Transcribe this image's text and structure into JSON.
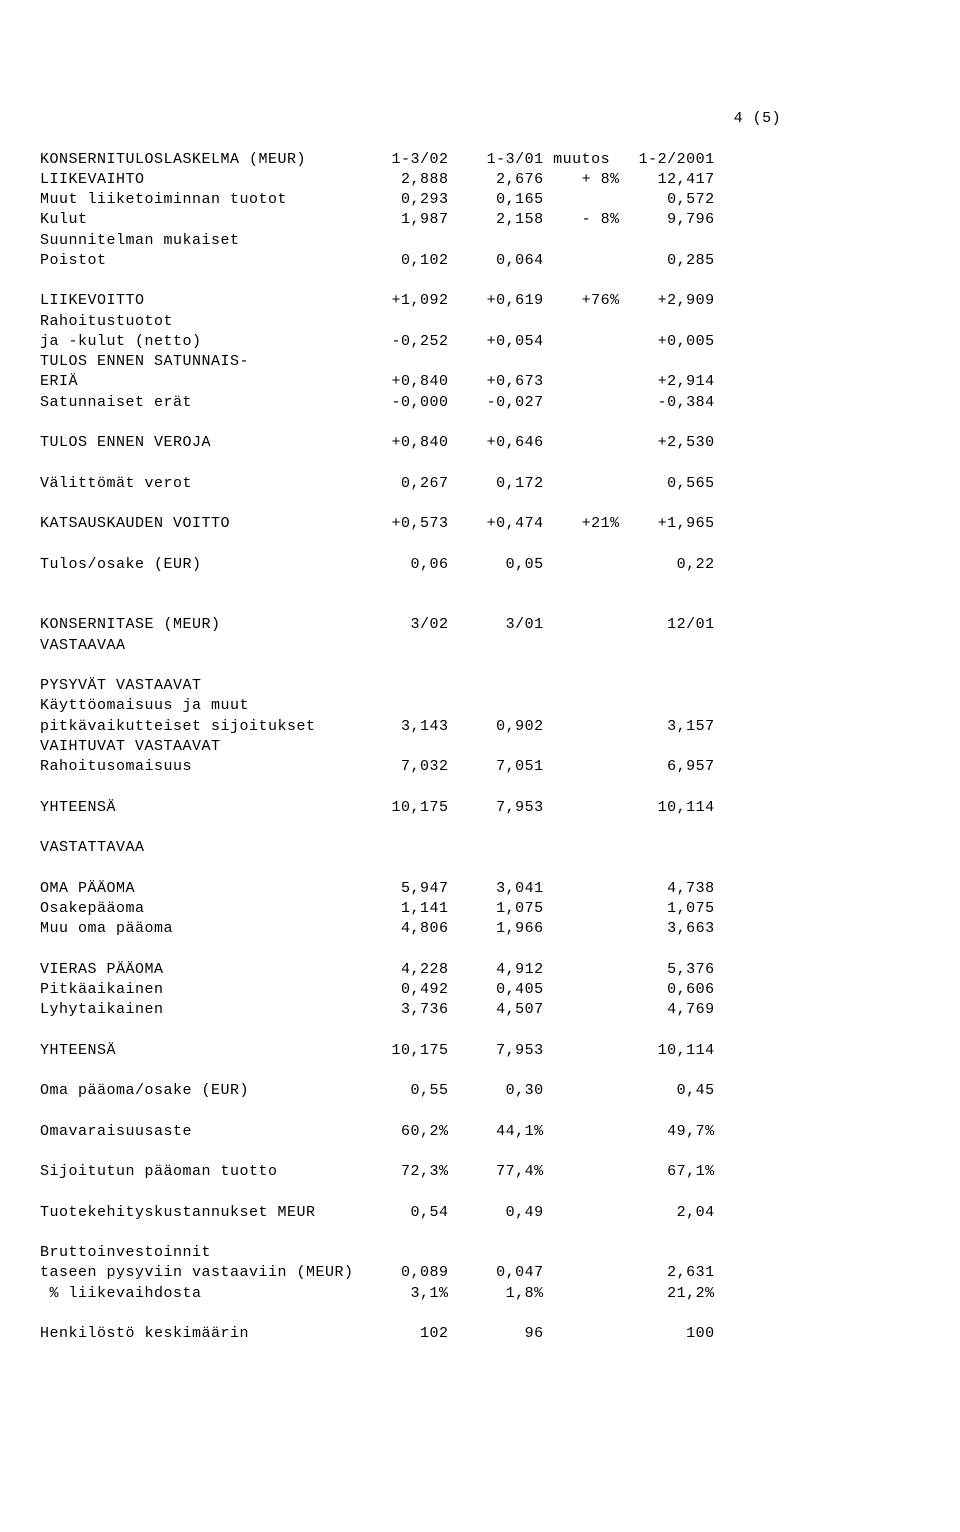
{
  "page_number": "4 (5)",
  "income": {
    "header": {
      "label": "KONSERNITULOSLASKELMA (MEUR)",
      "c1": "1-3/02",
      "c2": "1-3/01",
      "c3": "muutos",
      "c4": "1-2/2001"
    },
    "rows": [
      {
        "label": "LIIKEVAIHTO",
        "c1": "2,888",
        "c2": "2,676",
        "c3": "+ 8%",
        "c4": "12,417"
      },
      {
        "label": "Muut liiketoiminnan tuotot",
        "c1": "0,293",
        "c2": "0,165",
        "c3": "",
        "c4": "0,572"
      },
      {
        "label": "Kulut",
        "c1": "1,987",
        "c2": "2,158",
        "c3": "- 8%",
        "c4": "9,796"
      },
      {
        "label": "Suunnitelman mukaiset",
        "c1": "",
        "c2": "",
        "c3": "",
        "c4": ""
      },
      {
        "label": "Poistot",
        "c1": "0,102",
        "c2": "0,064",
        "c3": "",
        "c4": "0,285"
      },
      {
        "label": "",
        "c1": "",
        "c2": "",
        "c3": "",
        "c4": ""
      },
      {
        "label": "LIIKEVOITTO",
        "c1": "+1,092",
        "c2": "+0,619",
        "c3": "+76%",
        "c4": "+2,909"
      },
      {
        "label": "Rahoitustuotot",
        "c1": "",
        "c2": "",
        "c3": "",
        "c4": ""
      },
      {
        "label": "ja -kulut (netto)",
        "c1": "-0,252",
        "c2": "+0,054",
        "c3": "",
        "c4": "+0,005"
      },
      {
        "label": "TULOS ENNEN SATUNNAIS-",
        "c1": "",
        "c2": "",
        "c3": "",
        "c4": ""
      },
      {
        "label": "ERIÄ",
        "c1": "+0,840",
        "c2": "+0,673",
        "c3": "",
        "c4": "+2,914"
      },
      {
        "label": "Satunnaiset erät",
        "c1": "-0,000",
        "c2": "-0,027",
        "c3": "",
        "c4": "-0,384"
      },
      {
        "label": "",
        "c1": "",
        "c2": "",
        "c3": "",
        "c4": ""
      },
      {
        "label": "TULOS ENNEN VEROJA",
        "c1": "+0,840",
        "c2": "+0,646",
        "c3": "",
        "c4": "+2,530"
      },
      {
        "label": "",
        "c1": "",
        "c2": "",
        "c3": "",
        "c4": ""
      },
      {
        "label": "Välittömät verot",
        "c1": "0,267",
        "c2": "0,172",
        "c3": "",
        "c4": "0,565"
      },
      {
        "label": "",
        "c1": "",
        "c2": "",
        "c3": "",
        "c4": ""
      },
      {
        "label": "KATSAUSKAUDEN VOITTO",
        "c1": "+0,573",
        "c2": "+0,474",
        "c3": "+21%",
        "c4": "+1,965"
      },
      {
        "label": "",
        "c1": "",
        "c2": "",
        "c3": "",
        "c4": ""
      },
      {
        "label": "Tulos/osake (EUR)",
        "c1": "0,06",
        "c2": "0,05",
        "c3": "",
        "c4": "0,22"
      }
    ]
  },
  "balance": {
    "header": {
      "label": "KONSERNITASE (MEUR)",
      "c1": "3/02",
      "c2": "3/01",
      "c4": "12/01"
    },
    "sub": "VASTAAVAA",
    "block1_title1": "PYSYVÄT VASTAAVAT",
    "block1_title2": "Käyttöomaisuus ja muut",
    "rows1": [
      {
        "label": "pitkävaikutteiset sijoitukset",
        "c1": "3,143",
        "c2": "0,902",
        "c4": "3,157"
      },
      {
        "label": "VAIHTUVAT VASTAAVAT",
        "c1": "",
        "c2": "",
        "c4": ""
      },
      {
        "label": "Rahoitusomaisuus",
        "c1": "7,032",
        "c2": "7,051",
        "c4": "6,957"
      },
      {
        "label": "",
        "c1": "",
        "c2": "",
        "c4": ""
      },
      {
        "label": "YHTEENSÄ",
        "c1": "10,175",
        "c2": "7,953",
        "c4": "10,114"
      }
    ],
    "sub2": "VASTATTAVAA",
    "rows2": [
      {
        "label": "OMA PÄÄOMA",
        "c1": "5,947",
        "c2": "3,041",
        "c4": "4,738"
      },
      {
        "label": "Osakepääoma",
        "c1": "1,141",
        "c2": "1,075",
        "c4": "1,075"
      },
      {
        "label": "Muu oma pääoma",
        "c1": "4,806",
        "c2": "1,966",
        "c4": "3,663"
      },
      {
        "label": "",
        "c1": "",
        "c2": "",
        "c4": ""
      },
      {
        "label": "VIERAS PÄÄOMA",
        "c1": "4,228",
        "c2": "4,912",
        "c4": "5,376"
      },
      {
        "label": "Pitkäaikainen",
        "c1": "0,492",
        "c2": "0,405",
        "c4": "0,606"
      },
      {
        "label": "Lyhytaikainen",
        "c1": "3,736",
        "c2": "4,507",
        "c4": "4,769"
      },
      {
        "label": "",
        "c1": "",
        "c2": "",
        "c4": ""
      },
      {
        "label": "YHTEENSÄ",
        "c1": "10,175",
        "c2": "7,953",
        "c4": "10,114"
      }
    ],
    "rows3": [
      {
        "label": "Oma pääoma/osake (EUR)",
        "c1": "0,55",
        "c2": "0,30",
        "c4": "0,45"
      },
      {
        "label": "",
        "c1": "",
        "c2": "",
        "c4": ""
      },
      {
        "label": "Omavaraisuusaste",
        "c1": "60,2%",
        "c2": "44,1%",
        "c4": "49,7%"
      },
      {
        "label": "",
        "c1": "",
        "c2": "",
        "c4": ""
      },
      {
        "label": "Sijoitutun pääoman tuotto",
        "c1": "72,3%",
        "c2": "77,4%",
        "c4": "67,1%"
      },
      {
        "label": "",
        "c1": "",
        "c2": "",
        "c4": ""
      },
      {
        "label": "Tuotekehityskustannukset MEUR",
        "c1": "0,54",
        "c2": "0,49",
        "c4": "2,04"
      },
      {
        "label": "",
        "c1": "",
        "c2": "",
        "c4": ""
      },
      {
        "label": "Bruttoinvestoinnit",
        "c1": "",
        "c2": "",
        "c4": ""
      },
      {
        "label": "taseen pysyviin vastaaviin (MEUR)",
        "c1": "0,089",
        "c2": "0,047",
        "c4": "2,631"
      },
      {
        "label": " % liikevaihdosta",
        "c1": "3,1%",
        "c2": "1,8%",
        "c4": "21,2%"
      },
      {
        "label": "",
        "c1": "",
        "c2": "",
        "c4": ""
      },
      {
        "label": "Henkilöstö keskimäärin",
        "c1": "102",
        "c2": "96",
        "c4": "100"
      }
    ]
  },
  "layout": {
    "labelW": 33,
    "c1W": 10,
    "c2W": 10,
    "c3W": 8,
    "c4W": 10,
    "pageNumCol": 78
  }
}
